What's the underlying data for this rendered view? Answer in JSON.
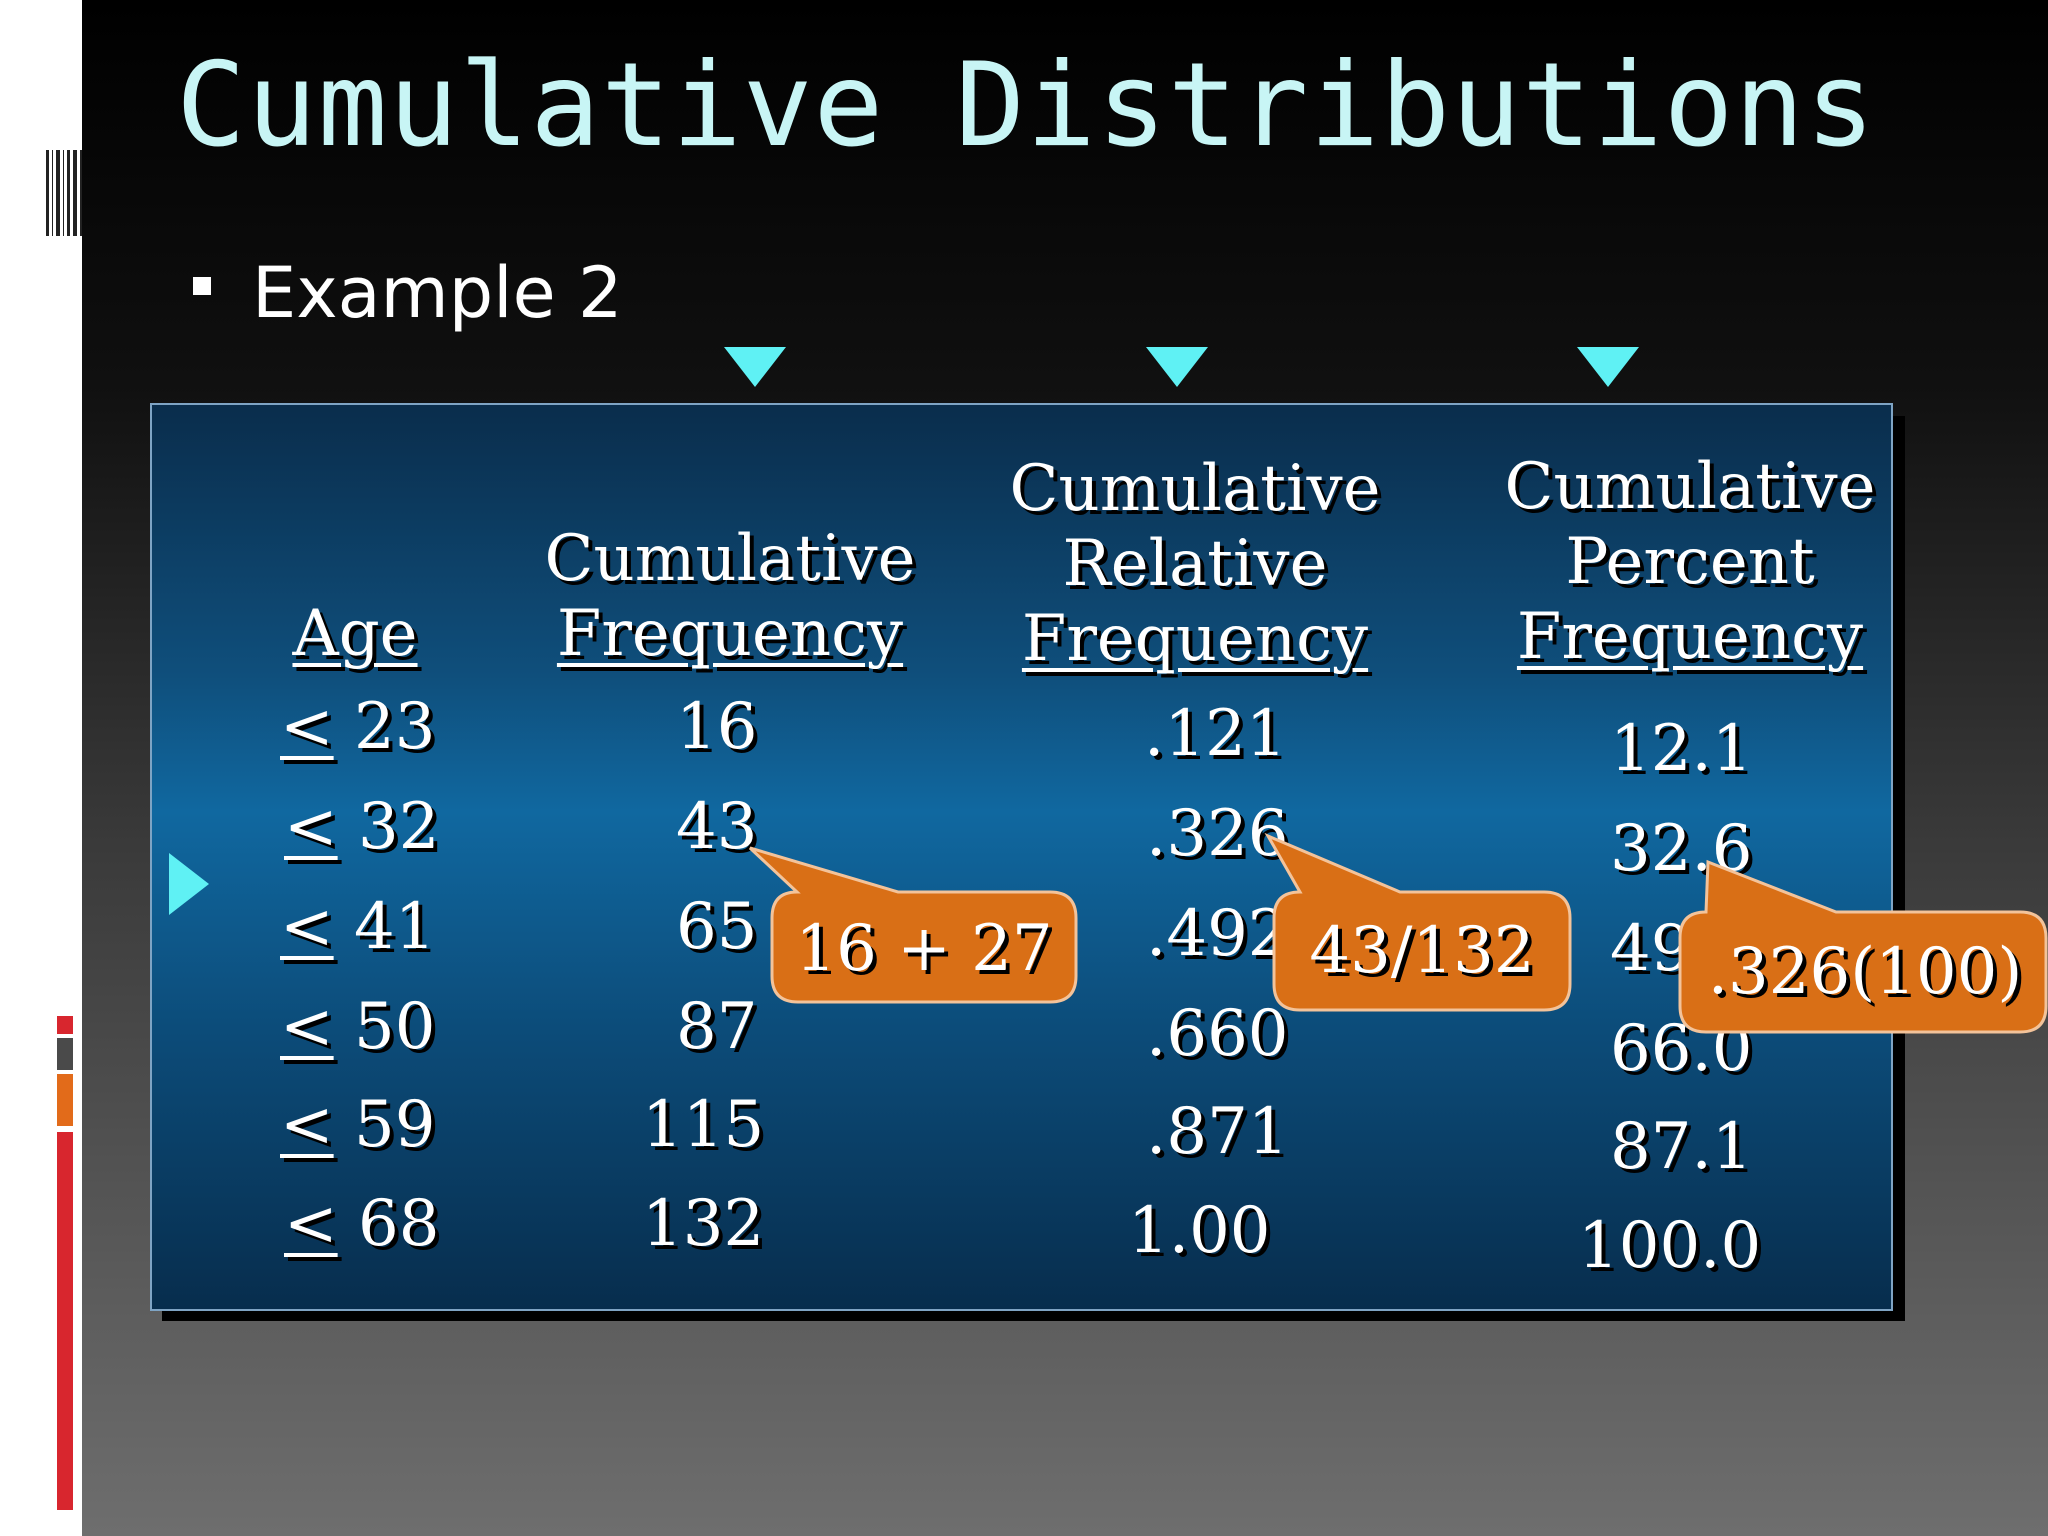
{
  "slide": {
    "title": "Cumulative Distributions",
    "bullet": "Example 2"
  },
  "table": {
    "headers": {
      "age": "Age",
      "freq_line1": "Cumulative",
      "freq_line2": "Frequency",
      "rel_line1": "Cumulative",
      "rel_line2": "Relative",
      "rel_line3": "Frequency",
      "pct_line1": "Cumulative",
      "pct_line2": "Percent",
      "pct_line3": "Frequency"
    },
    "rows": [
      {
        "age_sym": "<",
        "age_val": "23",
        "freq": "16",
        "rel": ".121",
        "pct": "12.1"
      },
      {
        "age_sym": "<",
        "age_val": "32",
        "freq": "43",
        "rel": ".326",
        "pct": "32.6"
      },
      {
        "age_sym": "<",
        "age_val": "41",
        "freq": "65",
        "rel": ".492",
        "pct": "49.2"
      },
      {
        "age_sym": "<",
        "age_val": "50",
        "freq": "87",
        "rel": ".660",
        "pct": "66.0"
      },
      {
        "age_sym": "<",
        "age_val": "59",
        "freq": "115",
        "rel": ".871",
        "pct": "87.1"
      },
      {
        "age_sym": "<",
        "age_val": "68",
        "freq": "132",
        "rel": "1.00",
        "pct": "100.0"
      }
    ]
  },
  "callouts": {
    "freq": "16 + 27",
    "rel": "43/132",
    "pct": ".326(100)"
  },
  "colors": {
    "accent_cyan": "#5ff1f4",
    "callout_orange": "#e07818",
    "title_text": "#c8f5f5"
  }
}
